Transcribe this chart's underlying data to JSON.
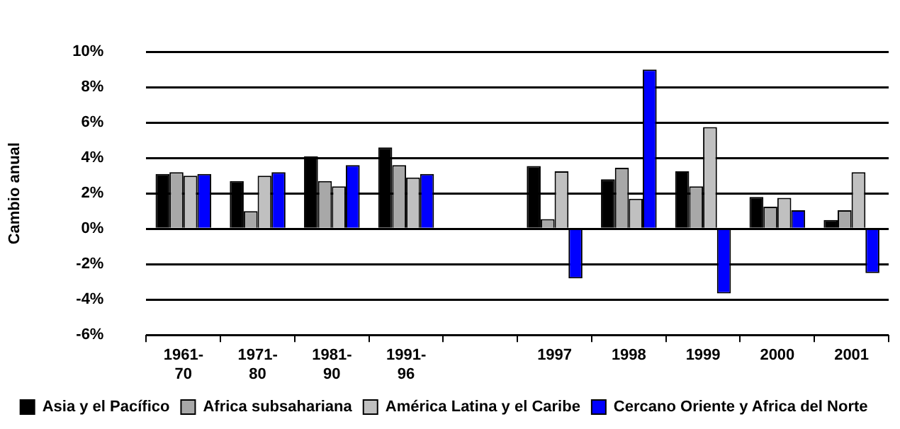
{
  "chart_data": {
    "type": "bar",
    "ylabel": "Cambio anual",
    "categories": [
      "1961-70",
      "1971-80",
      "1981-90",
      "1991-96",
      null,
      "1997",
      "1998",
      "1999",
      "2000",
      "2001"
    ],
    "series": [
      {
        "name": "Asia y el Pacífico",
        "color": "#000000",
        "values": [
          3.1,
          2.7,
          4.1,
          4.6,
          null,
          3.55,
          2.8,
          3.25,
          1.8,
          0.5
        ]
      },
      {
        "name": "Africa subsahariana",
        "color": "#a8a8a8",
        "values": [
          3.2,
          1.0,
          2.7,
          3.6,
          null,
          0.55,
          3.45,
          2.4,
          1.25,
          1.05
        ]
      },
      {
        "name": "América Latina y el Caribe",
        "color": "#c0c0c0",
        "values": [
          3.0,
          3.0,
          2.4,
          2.9,
          null,
          3.25,
          1.7,
          5.75,
          1.75,
          3.2
        ]
      },
      {
        "name": "Cercano Oriente y Africa del Norte",
        "color": "#0000ff",
        "values": [
          3.1,
          3.2,
          3.6,
          3.1,
          null,
          -2.8,
          9.0,
          -3.65,
          1.05,
          -2.5
        ]
      }
    ],
    "ylim": [
      -6,
      10
    ],
    "yticks": [
      {
        "value": -6,
        "label": "-6%"
      },
      {
        "value": -4,
        "label": "-4%"
      },
      {
        "value": -2,
        "label": "-2%"
      },
      {
        "value": 0,
        "label": "0%"
      },
      {
        "value": 2,
        "label": "2%"
      },
      {
        "value": 4,
        "label": "4%"
      },
      {
        "value": 6,
        "label": "6%"
      },
      {
        "value": 8,
        "label": "8%"
      },
      {
        "value": 10,
        "label": "10%"
      }
    ],
    "grid": "y",
    "legend": "bottom"
  }
}
